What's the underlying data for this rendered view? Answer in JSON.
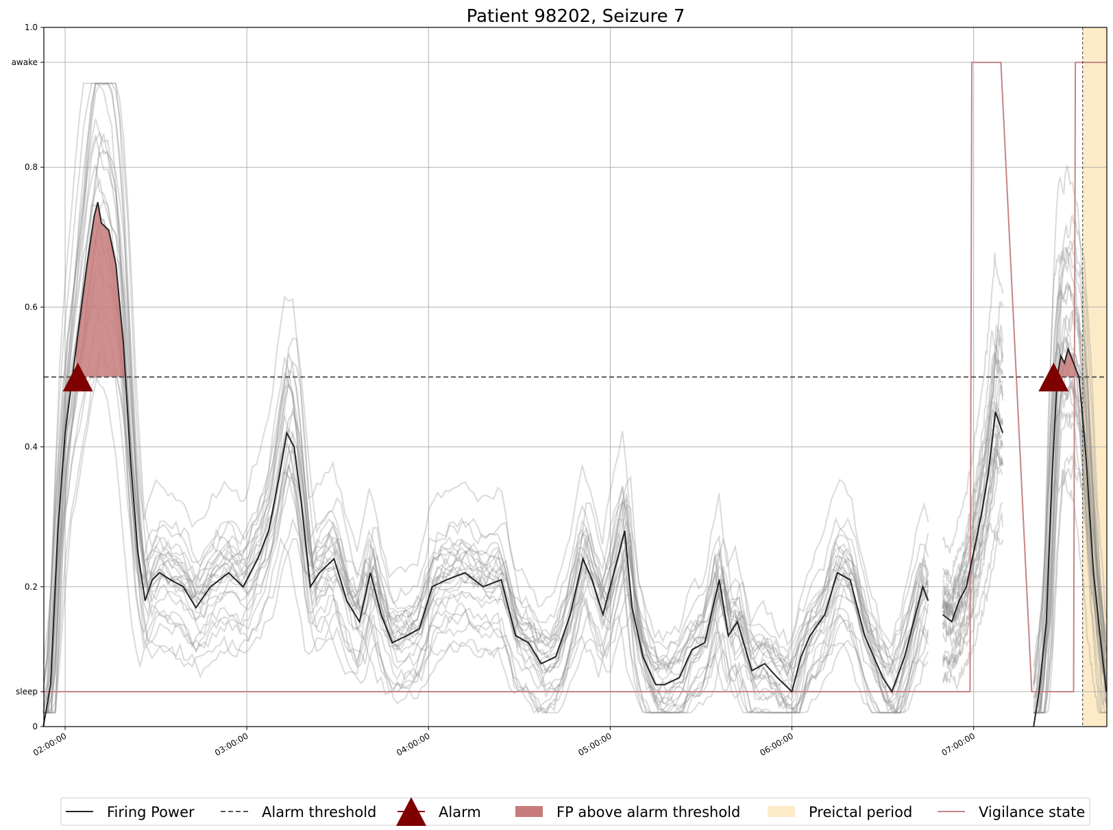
{
  "chart_data": {
    "type": "line",
    "title": "Patient 98202, Seizure 7",
    "xlabel": "",
    "ylabel": "",
    "x_ticks": [
      "02:00:00",
      "03:00:00",
      "04:00:00",
      "05:00:00",
      "06:00:00",
      "07:00:00"
    ],
    "x_range_hours": [
      1.883,
      7.733
    ],
    "ylim": [
      0,
      1.0
    ],
    "y_ticks": [
      {
        "value": 0,
        "label": "0"
      },
      {
        "value": 0.05,
        "label": "sleep"
      },
      {
        "value": 0.2,
        "label": "0.2"
      },
      {
        "value": 0.4,
        "label": "0.4"
      },
      {
        "value": 0.6,
        "label": "0.6"
      },
      {
        "value": 0.8,
        "label": "0.8"
      },
      {
        "value": 0.95,
        "label": "awake"
      },
      {
        "value": 1.0,
        "label": "1.0"
      }
    ],
    "grid": true,
    "alarm_threshold": 0.5,
    "colors": {
      "firing_power": "#222222",
      "ensemble": "#9a9a9a",
      "threshold": "#555555",
      "alarm": "#7f0000",
      "fp_above": "#c77b7b",
      "preictal": "#fdebc8",
      "vigilance": "#c48484"
    },
    "firing_power": {
      "x": [
        1.88,
        1.92,
        1.96,
        2.0,
        2.04,
        2.08,
        2.12,
        2.16,
        2.18,
        2.2,
        2.24,
        2.28,
        2.32,
        2.36,
        2.4,
        2.44,
        2.48,
        2.52,
        2.58,
        2.65,
        2.72,
        2.8,
        2.9,
        2.98,
        3.06,
        3.12,
        3.18,
        3.22,
        3.26,
        3.3,
        3.35,
        3.4,
        3.48,
        3.55,
        3.62,
        3.68,
        3.74,
        3.8,
        3.88,
        3.95,
        4.02,
        4.1,
        4.2,
        4.3,
        4.4,
        4.48,
        4.55,
        4.62,
        4.7,
        4.78,
        4.85,
        4.9,
        4.96,
        5.02,
        5.08,
        5.12,
        5.18,
        5.25,
        5.3,
        5.38,
        5.45,
        5.52,
        5.6,
        5.65,
        5.7,
        5.78,
        5.85,
        5.92,
        6.0,
        6.05,
        6.1,
        6.18,
        6.25,
        6.32,
        6.4,
        6.45,
        6.5,
        6.55,
        6.62,
        6.68,
        6.72,
        6.75
      ],
      "y": [
        0.0,
        0.06,
        0.28,
        0.42,
        0.5,
        0.58,
        0.66,
        0.73,
        0.75,
        0.72,
        0.71,
        0.66,
        0.55,
        0.38,
        0.25,
        0.18,
        0.21,
        0.22,
        0.21,
        0.2,
        0.17,
        0.2,
        0.22,
        0.2,
        0.24,
        0.28,
        0.36,
        0.42,
        0.4,
        0.32,
        0.2,
        0.22,
        0.24,
        0.18,
        0.15,
        0.22,
        0.16,
        0.12,
        0.13,
        0.14,
        0.2,
        0.21,
        0.22,
        0.2,
        0.21,
        0.13,
        0.12,
        0.09,
        0.1,
        0.16,
        0.24,
        0.21,
        0.16,
        0.22,
        0.28,
        0.17,
        0.1,
        0.06,
        0.06,
        0.07,
        0.11,
        0.12,
        0.21,
        0.13,
        0.15,
        0.08,
        0.09,
        0.07,
        0.05,
        0.1,
        0.13,
        0.16,
        0.22,
        0.21,
        0.13,
        0.1,
        0.07,
        0.05,
        0.1,
        0.16,
        0.2,
        0.18
      ]
    },
    "firing_power_seg2": {
      "x": [
        6.83,
        6.88,
        6.92,
        6.96,
        7.0,
        7.04,
        7.08,
        7.12,
        7.16
      ],
      "y": [
        0.16,
        0.15,
        0.18,
        0.2,
        0.25,
        0.3,
        0.36,
        0.45,
        0.42
      ]
    },
    "firing_power_seg3": {
      "x": [
        7.33,
        7.36,
        7.4,
        7.43,
        7.46,
        7.48,
        7.5,
        7.52,
        7.55,
        7.58,
        7.62,
        7.66,
        7.7,
        7.73
      ],
      "y": [
        0.0,
        0.05,
        0.15,
        0.35,
        0.5,
        0.53,
        0.52,
        0.54,
        0.52,
        0.5,
        0.38,
        0.22,
        0.12,
        0.05
      ]
    },
    "vigilance_state": {
      "x": [
        1.88,
        6.98,
        6.99,
        7.15,
        7.32,
        7.55,
        7.56,
        7.733
      ],
      "y": [
        0.05,
        0.05,
        0.95,
        0.95,
        0.05,
        0.05,
        0.95,
        0.95
      ]
    },
    "fp_above_threshold_intervals": [
      [
        2.06,
        2.36
      ],
      [
        7.46,
        7.6
      ]
    ],
    "alarms": [
      {
        "x": 2.07,
        "y": 0.5
      },
      {
        "x": 7.44,
        "y": 0.5
      }
    ],
    "preictal_period": [
      7.6,
      7.733
    ],
    "legend": {
      "placement": "bottom",
      "entries": [
        {
          "label": "Firing Power",
          "kind": "line"
        },
        {
          "label": "Alarm threshold",
          "kind": "dashed"
        },
        {
          "label": "Alarm",
          "kind": "triangle"
        },
        {
          "label": "FP above alarm threshold",
          "kind": "patch-red"
        },
        {
          "label": "Preictal period",
          "kind": "patch-orange"
        },
        {
          "label": "Vigilance state",
          "kind": "line-pink"
        }
      ]
    }
  }
}
